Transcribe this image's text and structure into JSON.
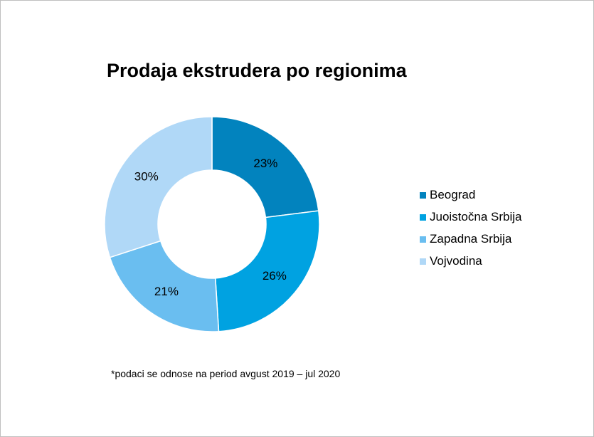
{
  "chart_data": {
    "type": "pie",
    "title": "Prodaja ekstrudera po regionima",
    "categories": [
      "Beograd",
      "Juoistočna Srbija",
      "Zapadna Srbija",
      "Vojvodina"
    ],
    "values": [
      23,
      26,
      21,
      30
    ],
    "value_labels": [
      "23%",
      "26%",
      "21%",
      "30%"
    ],
    "colors": [
      "#0283BE",
      "#00A2E1",
      "#6ABEF0",
      "#B0D8F7"
    ],
    "legend_position": "right",
    "donut": true
  },
  "footnote": "*podaci se odnose na period avgust 2019 – jul 2020"
}
